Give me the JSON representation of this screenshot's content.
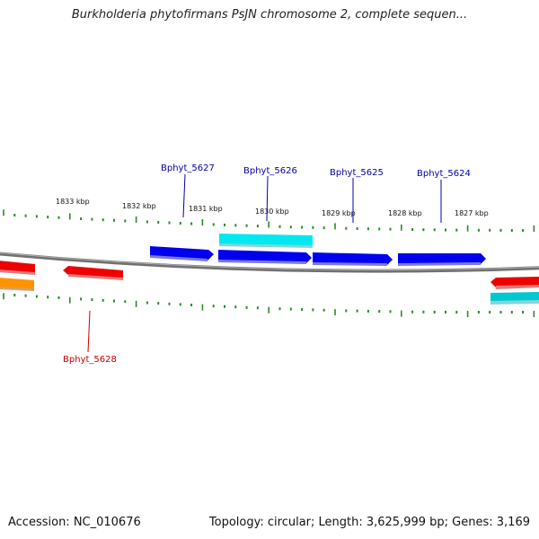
{
  "title": "Burkholderia phytofirmans PsJN chromosome 2, complete sequen...",
  "footer": {
    "accession": "Accession: NC_010676",
    "summary": "Topology: circular; Length: 3,625,999 bp; Genes: 3,169"
  },
  "scale_labels": [
    "1833 kbp",
    "1832 kbp",
    "1831 kbp",
    "1830 kbp",
    "1829 kbp",
    "1828 kbp",
    "1827 kbp"
  ],
  "gene_labels": [
    {
      "name": "Bphyt_5627",
      "color": "#0000aa"
    },
    {
      "name": "Bphyt_5626",
      "color": "#0000aa"
    },
    {
      "name": "Bphyt_5625",
      "color": "#0000aa"
    },
    {
      "name": "Bphyt_5624",
      "color": "#0000aa"
    },
    {
      "name": "Bphyt_5628",
      "color": "#cc0000"
    }
  ],
  "colors": {
    "forward_cds": "#0000ee",
    "reverse_cds": "#ee0000",
    "forward_feature": "#00e5ee",
    "reverse_feature": "#ff8c00",
    "backbone": "#808080",
    "ticks": "#2a8a2a"
  }
}
